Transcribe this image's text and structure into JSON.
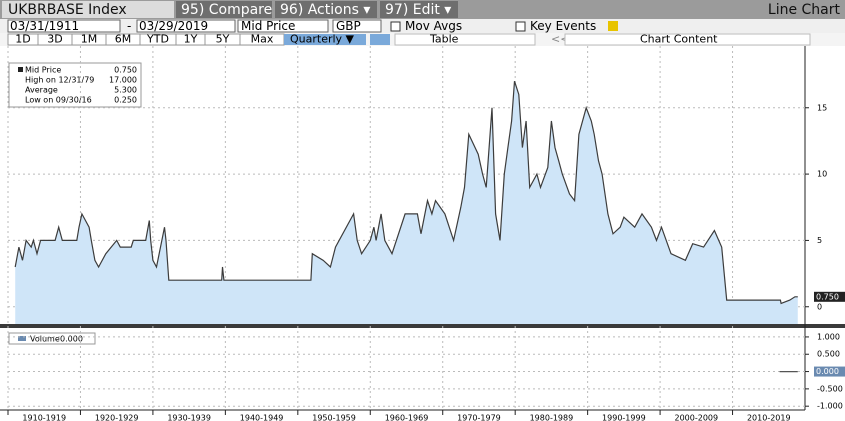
{
  "toolbar": {
    "ticker": "UKBRBASE Index",
    "compare": "95) Compare",
    "actions": "96) Actions ▾",
    "edit": "97) Edit ▾",
    "view": "Line Chart",
    "start_date": "03/31/1911",
    "date_separator": "-",
    "end_date": "03/29/2019",
    "field": "Mid Price",
    "currency": "GBP",
    "mov_avgs": "Mov Avgs",
    "key_events": "Key Events",
    "ranges": [
      "1D",
      "3D",
      "1M",
      "6M",
      "YTD",
      "1Y",
      "5Y",
      "Max"
    ],
    "period": "Quarterly ▼",
    "table": "Table",
    "collapse": "<<",
    "chart_content": "Chart Content"
  },
  "legend": [
    {
      "label": "Mid Price",
      "value": "0.750"
    },
    {
      "label": "High on 12/31/79",
      "value": "17.000"
    },
    {
      "label": "Average",
      "value": "5.300"
    },
    {
      "label": "Low on 09/30/16",
      "value": "0.250"
    }
  ],
  "chart_data": [
    {
      "type": "area",
      "color": "#3c3c3c",
      "fill": "#cfe5f8",
      "x": [
        1911,
        1911.5,
        1912,
        1912.5,
        1913.2,
        1913.5,
        1914,
        1914.5,
        1916.5,
        1917,
        1917.5,
        1919.5,
        1919.8,
        1920.2,
        1921.2,
        1921.5,
        1922,
        1922.5,
        1923.5,
        1925,
        1925.5,
        1927,
        1927.3,
        1929,
        1929.5,
        1929.7,
        1930,
        1930.5,
        1931.6,
        1931.8,
        1932.2,
        1939.5,
        1939.6,
        1939.8,
        1951.8,
        1952,
        1953.5,
        1954.5,
        1955.2,
        1957.7,
        1958.2,
        1958.8,
        1960,
        1960.5,
        1960.8,
        1961.5,
        1962,
        1963,
        1964.8,
        1966.5,
        1967,
        1967.9,
        1968.5,
        1969,
        1970.3,
        1971.5,
        1972.5,
        1973,
        1973.6,
        1974.9,
        1975.5,
        1976,
        1976.8,
        1977.3,
        1977.9,
        1978.5,
        1979,
        1979.5,
        1979.9,
        1980.5,
        1981,
        1981.5,
        1982,
        1983,
        1983.5,
        1984.5,
        1985,
        1985.5,
        1986,
        1986.5,
        1987.5,
        1988.2,
        1988.8,
        1989.8,
        1990.5,
        1990.9,
        1991.5,
        1992,
        1992.8,
        1993.5,
        1994.5,
        1995,
        1996.5,
        1997.5,
        1998.8,
        1999.5,
        2000.2,
        2001.5,
        2003.5,
        2004.5,
        2006,
        2007.5,
        2008.5,
        2009.2,
        2016.6,
        2016.7,
        2017.9,
        2018.6,
        2019
      ],
      "values": [
        3,
        4.5,
        3.5,
        5,
        4.5,
        5,
        4,
        5,
        5,
        6,
        5,
        5,
        6,
        7,
        6,
        5,
        3.5,
        3,
        4,
        5,
        4.5,
        4.5,
        5,
        5,
        6.5,
        5,
        3.5,
        3,
        6,
        5,
        2,
        2,
        3,
        2,
        2,
        4,
        3.5,
        3,
        4.5,
        7,
        5,
        4,
        5,
        6,
        5,
        7,
        5,
        4,
        7,
        7,
        5.5,
        8,
        7,
        8,
        7,
        5,
        7.5,
        9,
        13,
        11.5,
        10,
        9,
        15,
        7,
        5,
        10,
        12,
        14,
        17,
        16,
        12,
        14,
        9,
        10,
        9,
        10.5,
        14,
        12,
        11,
        10,
        8.5,
        8,
        13,
        15,
        14,
        13,
        11,
        10,
        7,
        5.5,
        6,
        6.75,
        6,
        7,
        6,
        5,
        6,
        4,
        3.5,
        4.75,
        4.5,
        5.75,
        4.5,
        0.5,
        0.5,
        0.25,
        0.5,
        0.75,
        0.75
      ],
      "xlim": [
        1910,
        2020
      ],
      "ylim": [
        -1.3,
        18.6
      ],
      "yticks": [
        0,
        5,
        10,
        15
      ],
      "xticks": [
        {
          "value": 1910,
          "label": "1910-1919"
        },
        {
          "value": 1920,
          "label": "1920-1929"
        },
        {
          "value": 1930,
          "label": "1930-1939"
        },
        {
          "value": 1940,
          "label": "1940-1949"
        },
        {
          "value": 1950,
          "label": "1950-1959"
        },
        {
          "value": 1960,
          "label": "1960-1969"
        },
        {
          "value": 1970,
          "label": "1970-1979"
        },
        {
          "value": 1980,
          "label": "1980-1989"
        },
        {
          "value": 1990,
          "label": "1990-1999"
        },
        {
          "value": 2000,
          "label": "2000-2009"
        },
        {
          "value": 2010,
          "label": "2010-2019"
        }
      ],
      "grid": true,
      "last_label": {
        "value": 0.75,
        "label": "0.750"
      }
    },
    {
      "type": "line",
      "color": "#555555",
      "series_name": "Volume",
      "series_value_label": "0.000",
      "x": [
        2016.5,
        2019
      ],
      "values": [
        0,
        0
      ],
      "xlim": [
        1910,
        2020
      ],
      "ylim": [
        -1.11,
        1.2
      ],
      "yticks": [
        {
          "value": 1,
          "label": "1.000"
        },
        {
          "value": 0.5,
          "label": "0.500"
        },
        {
          "value": 0,
          "label": "0.000"
        },
        {
          "value": -0.5,
          "label": "-0.500"
        },
        {
          "value": -1,
          "label": "-1.000"
        }
      ],
      "grid": true,
      "last_label": {
        "value": 0,
        "label": "0.000"
      }
    }
  ]
}
